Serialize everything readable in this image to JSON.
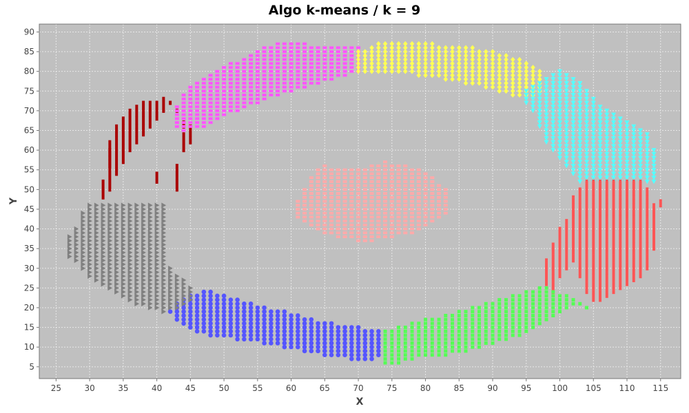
{
  "chart_data": {
    "type": "scatter",
    "title": "Algo k-means / k = 9",
    "xlabel": "X",
    "ylabel": "Y",
    "xlim": [
      22.5,
      118
    ],
    "ylim": [
      2,
      92
    ],
    "x_ticks": [
      25,
      30,
      35,
      40,
      45,
      50,
      55,
      60,
      65,
      70,
      75,
      80,
      85,
      90,
      95,
      100,
      105,
      110,
      115
    ],
    "y_ticks": [
      5,
      10,
      15,
      20,
      25,
      30,
      35,
      40,
      45,
      50,
      55,
      60,
      65,
      70,
      75,
      80,
      85,
      90
    ],
    "grid": true,
    "legend": "none",
    "colors": {
      "plot_background": "#c0c0c0",
      "grid": "#e8e8e8",
      "frame": "#777777"
    },
    "series": [
      {
        "marker": "rect-tall",
        "color": "#aa0000",
        "x": [
          32,
          33,
          34,
          35,
          36,
          37,
          38,
          39,
          40,
          41,
          42,
          43,
          44,
          45,
          33,
          40,
          43,
          44
        ],
        "y_min": [
          48,
          50,
          54,
          57,
          60,
          62,
          64,
          66,
          68,
          70,
          72,
          70,
          66,
          62,
          56,
          52,
          50,
          60
        ],
        "y_max": [
          52,
          62,
          66,
          68,
          70,
          71,
          72,
          72,
          72,
          73,
          72,
          70,
          67,
          66,
          60,
          54,
          56,
          64
        ]
      },
      {
        "marker": "square",
        "color": "#ff55ff",
        "x": [
          43,
          44,
          45,
          46,
          47,
          48,
          49,
          50,
          51,
          52,
          53,
          54,
          55,
          56,
          57,
          58,
          59,
          60,
          61,
          62,
          63,
          64,
          65,
          66,
          67,
          68,
          69,
          70
        ],
        "y_min": [
          66,
          65,
          66,
          66,
          66,
          67,
          68,
          69,
          70,
          70,
          71,
          72,
          72,
          73,
          74,
          74,
          75,
          75,
          76,
          76,
          77,
          77,
          78,
          78,
          79,
          79,
          80,
          80
        ],
        "y_max": [
          71,
          74,
          76,
          77,
          78,
          79,
          80,
          81,
          82,
          82,
          83,
          84,
          85,
          86,
          86,
          87,
          87,
          87,
          87,
          87,
          86,
          86,
          86,
          86,
          86,
          86,
          86,
          86
        ]
      },
      {
        "marker": "diamond",
        "color": "#ffff55",
        "x": [
          70,
          71,
          72,
          73,
          74,
          75,
          76,
          77,
          78,
          79,
          80,
          81,
          82,
          83,
          84,
          85,
          86,
          87,
          88,
          89,
          90,
          91,
          92,
          93,
          94,
          95,
          96,
          97
        ],
        "y_min": [
          80,
          80,
          80,
          80,
          80,
          80,
          80,
          80,
          80,
          79,
          79,
          79,
          79,
          78,
          78,
          78,
          77,
          77,
          77,
          76,
          76,
          75,
          75,
          74,
          74,
          74,
          74,
          75
        ],
        "y_max": [
          85,
          85,
          86,
          87,
          87,
          87,
          87,
          87,
          87,
          87,
          87,
          87,
          86,
          86,
          86,
          86,
          86,
          86,
          85,
          85,
          85,
          84,
          84,
          83,
          83,
          82,
          81,
          80
        ]
      },
      {
        "marker": "triangle-down",
        "color": "#55ffff",
        "x": [
          95,
          96,
          97,
          98,
          99,
          100,
          101,
          102,
          103,
          104,
          105,
          106,
          107,
          108,
          109,
          110,
          111,
          112,
          113,
          114
        ],
        "y_min": [
          72,
          70,
          66,
          62,
          60,
          58,
          56,
          54,
          52,
          52,
          52,
          52,
          52,
          52,
          52,
          52,
          52,
          52,
          52,
          52
        ],
        "y_max": [
          75,
          76,
          77,
          78,
          79,
          80,
          79,
          78,
          77,
          75,
          73,
          71,
          70,
          69,
          68,
          67,
          66,
          65,
          64,
          60
        ]
      },
      {
        "marker": "rect-tall",
        "color": "#ff5555",
        "x": [
          98,
          99,
          100,
          101,
          102,
          103,
          104,
          105,
          106,
          107,
          108,
          109,
          110,
          111,
          112,
          113,
          114,
          115
        ],
        "y_min": [
          26,
          24,
          28,
          30,
          32,
          28,
          24,
          22,
          22,
          23,
          24,
          25,
          26,
          27,
          28,
          30,
          35,
          46
        ],
        "y_max": [
          32,
          36,
          40,
          42,
          48,
          50,
          52,
          52,
          52,
          52,
          52,
          52,
          52,
          52,
          52,
          50,
          46,
          47
        ]
      },
      {
        "marker": "rect-wide",
        "color": "#55ff55",
        "x": [
          74,
          75,
          76,
          77,
          78,
          79,
          80,
          81,
          82,
          83,
          84,
          85,
          86,
          87,
          88,
          89,
          90,
          91,
          92,
          93,
          94,
          95,
          96,
          97,
          98,
          99,
          100,
          101,
          102,
          103,
          104
        ],
        "y_min": [
          6,
          6,
          6,
          7,
          7,
          8,
          8,
          8,
          8,
          8,
          9,
          9,
          9,
          10,
          10,
          11,
          11,
          12,
          12,
          13,
          13,
          14,
          15,
          16,
          17,
          18,
          19,
          20,
          21,
          21,
          20
        ],
        "y_max": [
          14,
          14,
          15,
          15,
          16,
          16,
          17,
          17,
          17,
          18,
          18,
          19,
          19,
          20,
          20,
          21,
          21,
          22,
          22,
          23,
          23,
          24,
          24,
          25,
          25,
          24,
          23,
          23,
          22,
          21,
          20
        ]
      },
      {
        "marker": "circle",
        "color": "#5555ff",
        "x": [
          42,
          43,
          44,
          45,
          46,
          47,
          48,
          49,
          50,
          51,
          52,
          53,
          54,
          55,
          56,
          57,
          58,
          59,
          60,
          61,
          62,
          63,
          64,
          65,
          66,
          67,
          68,
          69,
          70,
          71,
          72,
          73
        ],
        "y_min": [
          19,
          17,
          16,
          15,
          14,
          14,
          13,
          13,
          13,
          13,
          12,
          12,
          12,
          12,
          11,
          11,
          11,
          10,
          10,
          10,
          9,
          9,
          9,
          8,
          8,
          8,
          8,
          7,
          7,
          7,
          7,
          8
        ],
        "y_max": [
          19,
          21,
          22,
          23,
          23,
          24,
          24,
          23,
          23,
          22,
          22,
          21,
          21,
          20,
          20,
          19,
          19,
          19,
          18,
          18,
          17,
          17,
          16,
          16,
          16,
          15,
          15,
          15,
          15,
          14,
          14,
          14
        ]
      },
      {
        "marker": "triangle-right",
        "color": "#808080",
        "x": [
          27,
          28,
          29,
          30,
          31,
          32,
          33,
          34,
          35,
          36,
          37,
          38,
          39,
          40,
          41,
          42,
          43,
          44,
          45
        ],
        "y_min": [
          33,
          32,
          30,
          28,
          27,
          26,
          25,
          24,
          23,
          22,
          21,
          21,
          20,
          20,
          19,
          20,
          20,
          21,
          22
        ],
        "y_max": [
          38,
          40,
          44,
          46,
          46,
          46,
          46,
          46,
          46,
          46,
          46,
          46,
          46,
          46,
          46,
          30,
          28,
          27,
          25
        ]
      },
      {
        "marker": "square",
        "color": "#ffaaaa",
        "x": [
          61,
          62,
          63,
          64,
          65,
          66,
          67,
          68,
          69,
          70,
          71,
          72,
          73,
          74,
          75,
          76,
          77,
          78,
          79,
          80,
          81,
          82,
          83
        ],
        "y_min": [
          43,
          42,
          41,
          40,
          39,
          39,
          38,
          38,
          38,
          37,
          37,
          37,
          38,
          38,
          38,
          39,
          39,
          39,
          40,
          41,
          42,
          43,
          44
        ],
        "y_max": [
          47,
          50,
          53,
          55,
          56,
          55,
          55,
          55,
          55,
          55,
          55,
          56,
          56,
          57,
          56,
          56,
          56,
          55,
          55,
          54,
          53,
          51,
          50
        ]
      }
    ]
  }
}
